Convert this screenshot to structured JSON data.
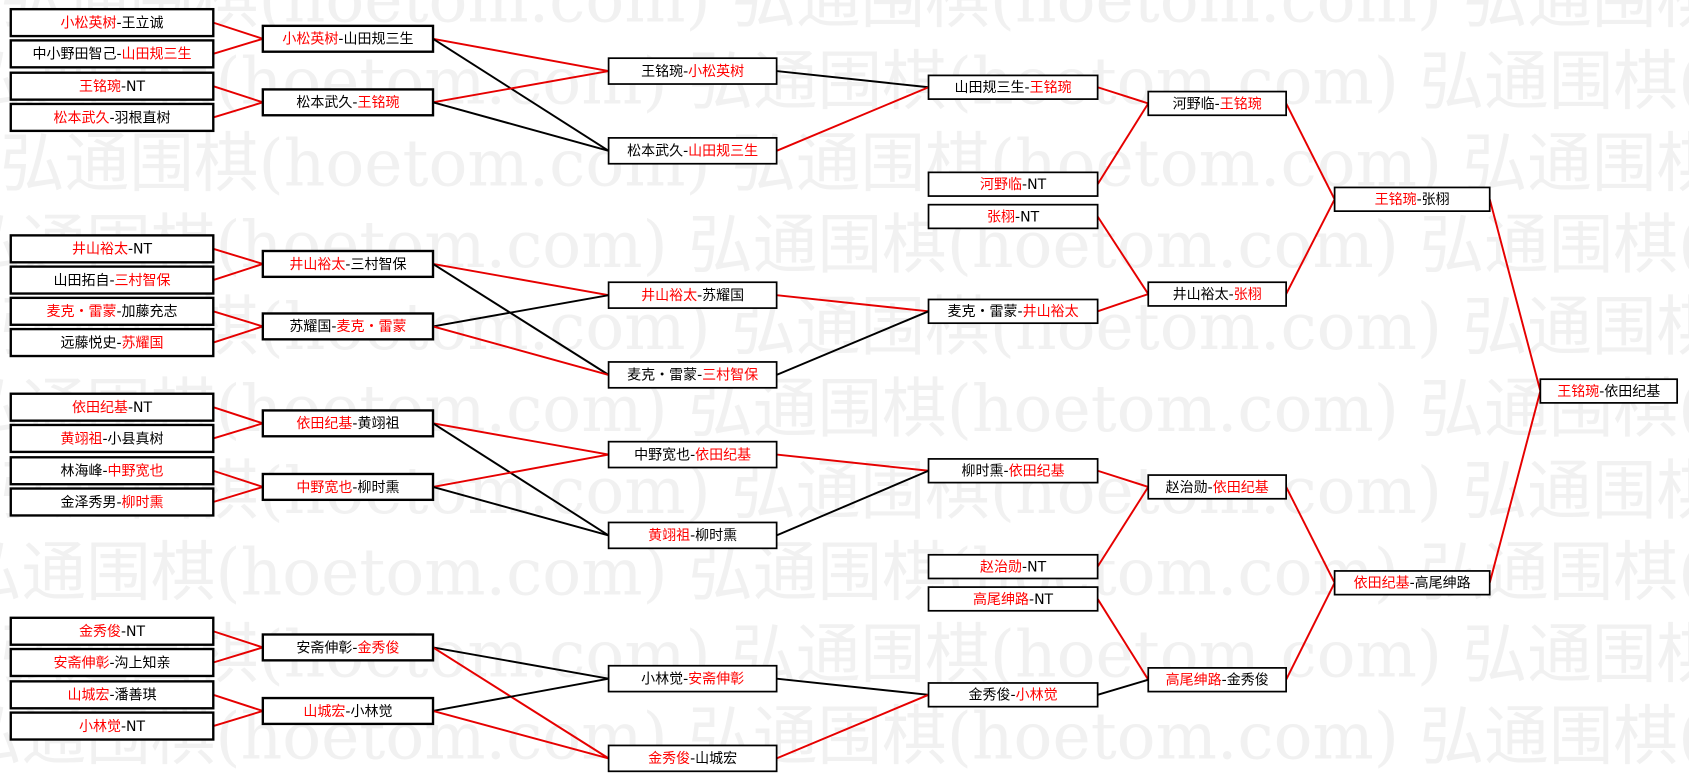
{
  "watermark": "弘通围棋(hoetom.com)",
  "separator": "-",
  "colors": {
    "winner": "#ff0000",
    "loser": "#000000",
    "line_win": "#e60000",
    "line_loss": "#000000",
    "watermark": "#f1f1f1"
  },
  "rounds": [
    [
      {
        "a": "小松英树",
        "b": "王立诚",
        "w": "a"
      },
      {
        "a": "中小野田智己",
        "b": "山田规三生",
        "w": "b"
      },
      {
        "a": "王铭琬",
        "b": "NT",
        "w": "a"
      },
      {
        "a": "松本武久",
        "b": "羽根直树",
        "w": "a"
      },
      {
        "a": "井山裕太",
        "b": "NT",
        "w": "a"
      },
      {
        "a": "山田拓自",
        "b": "三村智保",
        "w": "b"
      },
      {
        "a": "麦克・雷蒙",
        "b": "加藤充志",
        "w": "a"
      },
      {
        "a": "远藤悦史",
        "b": "苏耀国",
        "w": "b"
      },
      {
        "a": "依田纪基",
        "b": "NT",
        "w": "a"
      },
      {
        "a": "黄翊祖",
        "b": "小县真树",
        "w": "a"
      },
      {
        "a": "林海峰",
        "b": "中野宽也",
        "w": "b"
      },
      {
        "a": "金泽秀男",
        "b": "柳时熏",
        "w": "b"
      },
      {
        "a": "金秀俊",
        "b": "NT",
        "w": "a"
      },
      {
        "a": "安斋伸彰",
        "b": "沟上知亲",
        "w": "a"
      },
      {
        "a": "山城宏",
        "b": "潘善琪",
        "w": "a"
      },
      {
        "a": "小林觉",
        "b": "NT",
        "w": "a"
      }
    ],
    [
      {
        "a": "小松英树",
        "b": "山田规三生",
        "w": "a"
      },
      {
        "a": "松本武久",
        "b": "王铭琬",
        "w": "b"
      },
      {
        "a": "井山裕太",
        "b": "三村智保",
        "w": "a"
      },
      {
        "a": "苏耀国",
        "b": "麦克・雷蒙",
        "w": "b"
      },
      {
        "a": "依田纪基",
        "b": "黄翊祖",
        "w": "a"
      },
      {
        "a": "中野宽也",
        "b": "柳时熏",
        "w": "a"
      },
      {
        "a": "安斋伸彰",
        "b": "金秀俊",
        "w": "b"
      },
      {
        "a": "山城宏",
        "b": "小林觉",
        "w": "a"
      }
    ],
    [
      {
        "a": "王铭琬",
        "b": "小松英树",
        "w": "b"
      },
      {
        "a": "松本武久",
        "b": "山田规三生",
        "w": "b"
      },
      {
        "a": "井山裕太",
        "b": "苏耀国",
        "w": "a"
      },
      {
        "a": "麦克・雷蒙",
        "b": "三村智保",
        "w": "b"
      },
      {
        "a": "中野宽也",
        "b": "依田纪基",
        "w": "b"
      },
      {
        "a": "黄翊祖",
        "b": "柳时熏",
        "w": "a"
      },
      {
        "a": "小林觉",
        "b": "安斋伸彰",
        "w": "b"
      },
      {
        "a": "金秀俊",
        "b": "山城宏",
        "w": "a"
      }
    ],
    [
      {
        "a": "山田规三生",
        "b": "王铭琬",
        "w": "b"
      },
      {
        "a": "河野临",
        "b": "NT",
        "w": "a"
      },
      {
        "a": "张栩",
        "b": "NT",
        "w": "a"
      },
      {
        "a": "麦克・雷蒙",
        "b": "井山裕太",
        "w": "b"
      },
      {
        "a": "柳时熏",
        "b": "依田纪基",
        "w": "b"
      },
      {
        "a": "赵治勋",
        "b": "NT",
        "w": "a"
      },
      {
        "a": "高尾绅路",
        "b": "NT",
        "w": "a"
      },
      {
        "a": "金秀俊",
        "b": "小林觉",
        "w": "b"
      }
    ],
    [
      {
        "a": "河野临",
        "b": "王铭琬",
        "w": "b"
      },
      {
        "a": "井山裕太",
        "b": "张栩",
        "w": "b"
      },
      {
        "a": "赵治勋",
        "b": "依田纪基",
        "w": "b"
      },
      {
        "a": "高尾绅路",
        "b": "金秀俊",
        "w": "a"
      }
    ],
    [
      {
        "a": "王铭琬",
        "b": "张栩",
        "w": "a"
      },
      {
        "a": "依田纪基",
        "b": "高尾绅路",
        "w": "a"
      }
    ],
    [
      {
        "a": "王铭琬",
        "b": "依田纪基",
        "w": "a"
      }
    ]
  ],
  "links": [
    [
      "0.0",
      "1.0",
      "w"
    ],
    [
      "0.1",
      "1.0",
      "w"
    ],
    [
      "0.2",
      "1.1",
      "w"
    ],
    [
      "0.3",
      "1.1",
      "w"
    ],
    [
      "0.4",
      "1.2",
      "w"
    ],
    [
      "0.5",
      "1.2",
      "w"
    ],
    [
      "0.6",
      "1.3",
      "w"
    ],
    [
      "0.7",
      "1.3",
      "w"
    ],
    [
      "0.8",
      "1.4",
      "w"
    ],
    [
      "0.9",
      "1.4",
      "w"
    ],
    [
      "0.10",
      "1.5",
      "w"
    ],
    [
      "0.11",
      "1.5",
      "w"
    ],
    [
      "0.12",
      "1.6",
      "w"
    ],
    [
      "0.13",
      "1.6",
      "w"
    ],
    [
      "0.14",
      "1.7",
      "w"
    ],
    [
      "0.15",
      "1.7",
      "w"
    ],
    [
      "1.0",
      "2.0",
      "w"
    ],
    [
      "1.0",
      "2.1",
      "l"
    ],
    [
      "1.1",
      "2.0",
      "w"
    ],
    [
      "1.1",
      "2.1",
      "l"
    ],
    [
      "1.2",
      "2.2",
      "w"
    ],
    [
      "1.2",
      "2.3",
      "l"
    ],
    [
      "1.3",
      "2.2",
      "l"
    ],
    [
      "1.3",
      "2.3",
      "w"
    ],
    [
      "1.4",
      "2.4",
      "w"
    ],
    [
      "1.4",
      "2.5",
      "l"
    ],
    [
      "1.5",
      "2.4",
      "w"
    ],
    [
      "1.5",
      "2.5",
      "l"
    ],
    [
      "1.6",
      "2.6",
      "l"
    ],
    [
      "1.6",
      "2.7",
      "w"
    ],
    [
      "1.7",
      "2.6",
      "l"
    ],
    [
      "1.7",
      "2.7",
      "w"
    ],
    [
      "2.0",
      "3.0",
      "l"
    ],
    [
      "2.1",
      "3.0",
      "w"
    ],
    [
      "2.2",
      "3.3",
      "w"
    ],
    [
      "2.3",
      "3.3",
      "l"
    ],
    [
      "2.4",
      "3.4",
      "w"
    ],
    [
      "2.5",
      "3.4",
      "l"
    ],
    [
      "2.6",
      "3.7",
      "l"
    ],
    [
      "2.7",
      "3.7",
      "w"
    ],
    [
      "3.0",
      "4.0",
      "w"
    ],
    [
      "3.1",
      "4.0",
      "w"
    ],
    [
      "3.2",
      "4.1",
      "w"
    ],
    [
      "3.3",
      "4.1",
      "w"
    ],
    [
      "3.4",
      "4.2",
      "w"
    ],
    [
      "3.5",
      "4.2",
      "w"
    ],
    [
      "3.6",
      "4.3",
      "w"
    ],
    [
      "3.7",
      "4.3",
      "l"
    ],
    [
      "4.0",
      "5.0",
      "w"
    ],
    [
      "4.1",
      "5.0",
      "w"
    ],
    [
      "4.2",
      "5.1",
      "w"
    ],
    [
      "4.3",
      "5.1",
      "w"
    ],
    [
      "5.0",
      "6.0",
      "w"
    ],
    [
      "5.1",
      "6.0",
      "w"
    ]
  ]
}
